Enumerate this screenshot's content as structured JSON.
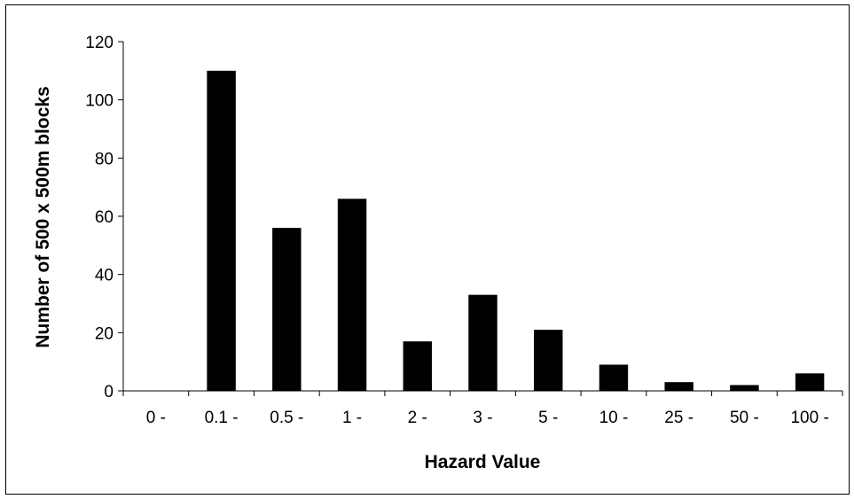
{
  "chart_data": {
    "type": "bar",
    "title": "",
    "xlabel": "Hazard Value",
    "ylabel": "Number of 500 x 500m blocks",
    "categories": [
      "0 -",
      "0.1 -",
      "0.5 -",
      "1 -",
      "2 -",
      "3 -",
      "5 -",
      "10 -",
      "25 -",
      "50 -",
      "100 -"
    ],
    "values": [
      0,
      110,
      56,
      66,
      17,
      33,
      21,
      9,
      3,
      2,
      6
    ],
    "ylim": [
      0,
      120
    ],
    "yticks": [
      0,
      20,
      40,
      60,
      80,
      100,
      120
    ],
    "grid": false,
    "legend": "none",
    "bar_color": "#000000"
  }
}
